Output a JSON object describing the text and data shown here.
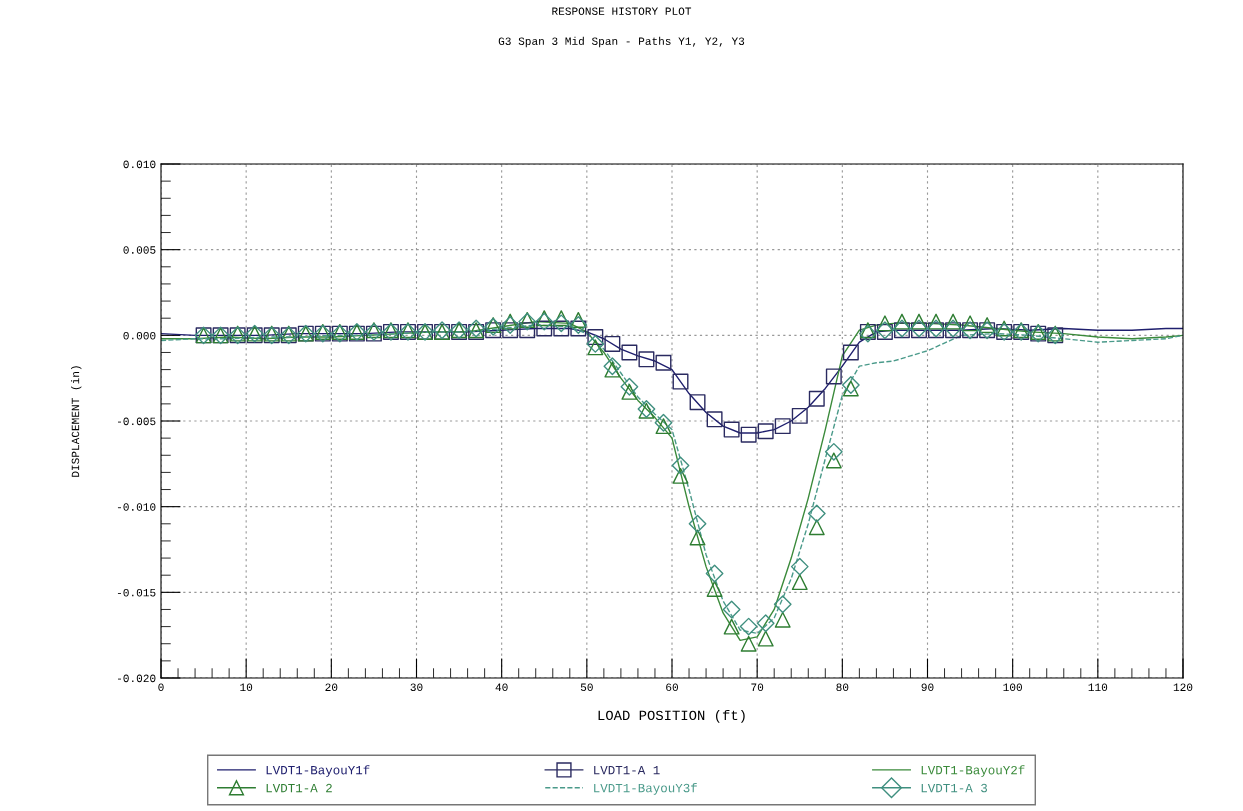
{
  "chart_data": {
    "type": "line",
    "title": "RESPONSE HISTORY PLOT",
    "subtitle": "G3 Span 3 Mid Span - Paths Y1, Y2, Y3",
    "xlabel": "LOAD POSITION (ft)",
    "ylabel": "DISPLACEMENT (in)",
    "xlim": [
      0,
      120
    ],
    "xticks": [
      0,
      10,
      20,
      30,
      40,
      50,
      60,
      70,
      80,
      90,
      100,
      110,
      120
    ],
    "ylim": [
      -0.02,
      0.01
    ],
    "yticks": [
      {
        "value": -0.02,
        "label": "-0.020"
      },
      {
        "value": -0.015,
        "label": "-0.015"
      },
      {
        "value": -0.01,
        "label": "-0.010"
      },
      {
        "value": -0.005,
        "label": "-0.005"
      },
      {
        "value": 0.0,
        "label": "0.000"
      },
      {
        "value": 0.005,
        "label": "0.005"
      },
      {
        "value": 0.01,
        "label": "0.010"
      }
    ],
    "grid": true,
    "legend": "bottom",
    "series": [
      {
        "name": "LVDT1-BayouY1f",
        "color": "#1f1f6e",
        "marker": "none",
        "line_style": "solid",
        "x": [
          0,
          4,
          8,
          12,
          16,
          20,
          24,
          28,
          32,
          36,
          40,
          44,
          48,
          50,
          52,
          54,
          56,
          58,
          60,
          62,
          64,
          66,
          68,
          70,
          72,
          74,
          76,
          78,
          80,
          82,
          84,
          86,
          88,
          90,
          94,
          98,
          102,
          106,
          110,
          114,
          118,
          120
        ],
        "values": [
          0.0001,
          0.0,
          0.0,
          0.0,
          0.0001,
          0.0001,
          0.0001,
          0.0002,
          0.0002,
          0.0002,
          0.0003,
          0.0004,
          0.0004,
          0.0002,
          -0.0002,
          -0.0008,
          -0.0012,
          -0.0015,
          -0.002,
          -0.0034,
          -0.0045,
          -0.0053,
          -0.0057,
          -0.0057,
          -0.0055,
          -0.005,
          -0.0042,
          -0.0031,
          -0.0018,
          -0.0004,
          0.0002,
          0.0003,
          0.0003,
          0.0003,
          0.0003,
          0.0004,
          0.0003,
          0.0004,
          0.0003,
          0.0003,
          0.0004,
          0.0004
        ]
      },
      {
        "name": "LVDT1-A 1",
        "type": "scatter",
        "color": "#2a2a60",
        "marker": "square",
        "x": [
          5,
          7,
          9,
          11,
          13,
          15,
          17,
          19,
          21,
          23,
          25,
          27,
          29,
          31,
          33,
          35,
          37,
          39,
          41,
          43,
          45,
          47,
          49,
          51,
          53,
          55,
          57,
          59,
          61,
          63,
          65,
          67,
          69,
          71,
          73,
          75,
          77,
          79,
          81,
          83,
          85,
          87,
          89,
          91,
          93,
          95,
          97,
          99,
          101,
          103,
          105
        ],
        "values": [
          0.0,
          0.0,
          0.0,
          0.0,
          0.0,
          0.0,
          0.0001,
          0.0001,
          0.0001,
          0.0001,
          0.0001,
          0.0002,
          0.0002,
          0.0002,
          0.0002,
          0.0002,
          0.0002,
          0.0003,
          0.0003,
          0.0003,
          0.0004,
          0.0004,
          0.0004,
          -0.0001,
          -0.0005,
          -0.001,
          -0.0014,
          -0.0016,
          -0.0027,
          -0.0039,
          -0.0049,
          -0.0055,
          -0.0058,
          -0.0056,
          -0.0053,
          -0.0047,
          -0.0037,
          -0.0024,
          -0.001,
          0.0002,
          0.0002,
          0.0003,
          0.0003,
          0.0003,
          0.0003,
          0.0003,
          0.0003,
          0.0002,
          0.0002,
          0.0001,
          0.0
        ]
      },
      {
        "name": "LVDT1-BayouY2f",
        "color": "#3a8a3a",
        "marker": "none",
        "line_style": "solid",
        "x": [
          0,
          4,
          8,
          12,
          16,
          20,
          24,
          28,
          32,
          36,
          40,
          44,
          48,
          50,
          52,
          54,
          56,
          58,
          60,
          62,
          64,
          66,
          68,
          70,
          72,
          74,
          76,
          78,
          80,
          82,
          84,
          86,
          88,
          90,
          94,
          98,
          102,
          106,
          110,
          114,
          118,
          120
        ],
        "values": [
          -0.0002,
          -0.0002,
          -0.0001,
          -0.0002,
          -0.0001,
          -0.0001,
          0.0,
          0.0001,
          0.0002,
          0.0002,
          0.0005,
          0.0008,
          0.0007,
          0.0002,
          -0.001,
          -0.0025,
          -0.0038,
          -0.0048,
          -0.006,
          -0.01,
          -0.0135,
          -0.0162,
          -0.0178,
          -0.0176,
          -0.016,
          -0.013,
          -0.0095,
          -0.0055,
          -0.0012,
          0.0003,
          0.0006,
          0.0007,
          0.0007,
          0.0007,
          0.0006,
          0.0004,
          0.0002,
          0.0001,
          -0.0001,
          -0.0002,
          -0.0001,
          0.0
        ]
      },
      {
        "name": "LVDT1-A 2",
        "type": "scatter",
        "color": "#2e7d32",
        "marker": "triangle",
        "x": [
          5,
          7,
          9,
          11,
          13,
          15,
          17,
          19,
          21,
          23,
          25,
          27,
          29,
          31,
          33,
          35,
          37,
          39,
          41,
          43,
          45,
          47,
          49,
          51,
          53,
          55,
          57,
          59,
          61,
          63,
          65,
          67,
          69,
          71,
          73,
          75,
          77,
          79,
          81,
          83,
          85,
          87,
          89,
          91,
          93,
          95,
          97,
          99,
          101,
          103,
          105
        ],
        "values": [
          0.0,
          0.0,
          0.0001,
          0.0001,
          0.0001,
          0.0001,
          0.0001,
          0.0002,
          0.0002,
          0.0002,
          0.0003,
          0.0003,
          0.0003,
          0.0002,
          0.0002,
          0.0003,
          0.0003,
          0.0006,
          0.0008,
          0.0009,
          0.001,
          0.001,
          0.0009,
          -0.0007,
          -0.002,
          -0.0033,
          -0.0044,
          -0.0053,
          -0.0082,
          -0.0118,
          -0.0148,
          -0.017,
          -0.018,
          -0.0177,
          -0.0166,
          -0.0144,
          -0.0112,
          -0.0073,
          -0.0031,
          0.0003,
          0.0007,
          0.0008,
          0.0008,
          0.0008,
          0.0008,
          0.0007,
          0.0006,
          0.0004,
          0.0003,
          0.0002,
          0.0001
        ]
      },
      {
        "name": "LVDT1-BayouY3f",
        "color": "#4a9a8a",
        "marker": "none",
        "line_style": "dashed",
        "x": [
          0,
          4,
          8,
          12,
          16,
          20,
          24,
          28,
          32,
          36,
          40,
          44,
          48,
          50,
          52,
          54,
          56,
          58,
          60,
          62,
          64,
          66,
          68,
          70,
          72,
          74,
          76,
          78,
          80,
          82,
          84,
          86,
          88,
          90,
          94,
          98,
          102,
          106,
          110,
          114,
          118,
          120
        ],
        "values": [
          -0.0003,
          -0.0002,
          -0.0002,
          -0.0001,
          -0.0001,
          0.0,
          0.0,
          0.0001,
          0.0002,
          0.0002,
          0.0004,
          0.0006,
          0.0005,
          0.0001,
          -0.0008,
          -0.0022,
          -0.0036,
          -0.0046,
          -0.0055,
          -0.009,
          -0.0128,
          -0.0155,
          -0.0172,
          -0.0174,
          -0.0165,
          -0.0142,
          -0.011,
          -0.0072,
          -0.0035,
          -0.0018,
          -0.0016,
          -0.0015,
          -0.0012,
          -0.0009,
          0.0,
          0.0001,
          0.0,
          -0.0002,
          -0.0004,
          -0.0003,
          -0.0002,
          0.0
        ]
      },
      {
        "name": "LVDT1-A 3",
        "type": "scatter",
        "color": "#3f8f7f",
        "marker": "diamond",
        "x": [
          5,
          7,
          9,
          11,
          13,
          15,
          17,
          19,
          21,
          23,
          25,
          27,
          29,
          31,
          33,
          35,
          37,
          39,
          41,
          43,
          45,
          47,
          49,
          51,
          53,
          55,
          57,
          59,
          61,
          63,
          65,
          67,
          69,
          71,
          73,
          75,
          77,
          79,
          81,
          83,
          85,
          87,
          89,
          91,
          93,
          95,
          97,
          99,
          101,
          103,
          105
        ],
        "values": [
          0.0,
          0.0,
          0.0,
          0.0001,
          0.0,
          0.0,
          0.0001,
          0.0001,
          0.0001,
          0.0002,
          0.0002,
          0.0002,
          0.0002,
          0.0002,
          0.0003,
          0.0003,
          0.0004,
          0.0005,
          0.0006,
          0.0008,
          0.0008,
          0.0007,
          0.0006,
          -0.0005,
          -0.0018,
          -0.003,
          -0.0043,
          -0.0051,
          -0.0076,
          -0.011,
          -0.0139,
          -0.016,
          -0.017,
          -0.0168,
          -0.0157,
          -0.0135,
          -0.0104,
          -0.0068,
          -0.0029,
          0.0001,
          0.0003,
          0.0004,
          0.0004,
          0.0004,
          0.0004,
          0.0003,
          0.0003,
          0.0002,
          0.0002,
          0.0001,
          0.0
        ]
      }
    ]
  }
}
